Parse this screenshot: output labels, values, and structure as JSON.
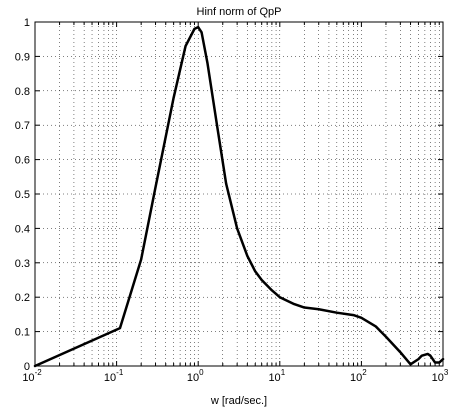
{
  "chart_data": {
    "type": "line",
    "title": "Hinf norm of QpP",
    "xlabel": "w [rad/sec.]",
    "ylabel": "",
    "x_scale": "log",
    "xlim": [
      0.01,
      1000
    ],
    "ylim": [
      0,
      1
    ],
    "grid": true,
    "x_ticks": [
      {
        "base": "10",
        "exp": "-2"
      },
      {
        "base": "10",
        "exp": "-1"
      },
      {
        "base": "10",
        "exp": "0"
      },
      {
        "base": "10",
        "exp": "1"
      },
      {
        "base": "10",
        "exp": "2"
      },
      {
        "base": "10",
        "exp": "3"
      }
    ],
    "y_ticks": [
      "0",
      "0.1",
      "0.2",
      "0.3",
      "0.4",
      "0.5",
      "0.6",
      "0.7",
      "0.8",
      "0.9",
      "1"
    ],
    "series": [
      {
        "color": "#000000",
        "x": [
          0.01,
          0.11,
          0.2,
          0.3,
          0.5,
          0.7,
          0.9,
          1.0,
          1.1,
          1.3,
          1.7,
          2.2,
          3,
          4,
          5,
          6,
          8,
          10,
          15,
          20,
          30,
          50,
          80,
          100,
          150,
          200,
          300,
          400,
          500,
          550,
          650,
          700,
          800,
          900,
          1000
        ],
        "y": [
          0.0,
          0.11,
          0.31,
          0.52,
          0.78,
          0.93,
          0.98,
          0.985,
          0.97,
          0.88,
          0.7,
          0.53,
          0.4,
          0.32,
          0.275,
          0.25,
          0.22,
          0.2,
          0.18,
          0.17,
          0.165,
          0.155,
          0.148,
          0.14,
          0.115,
          0.085,
          0.04,
          0.005,
          0.02,
          0.03,
          0.035,
          0.03,
          0.01,
          0.01,
          0.02
        ]
      }
    ]
  }
}
